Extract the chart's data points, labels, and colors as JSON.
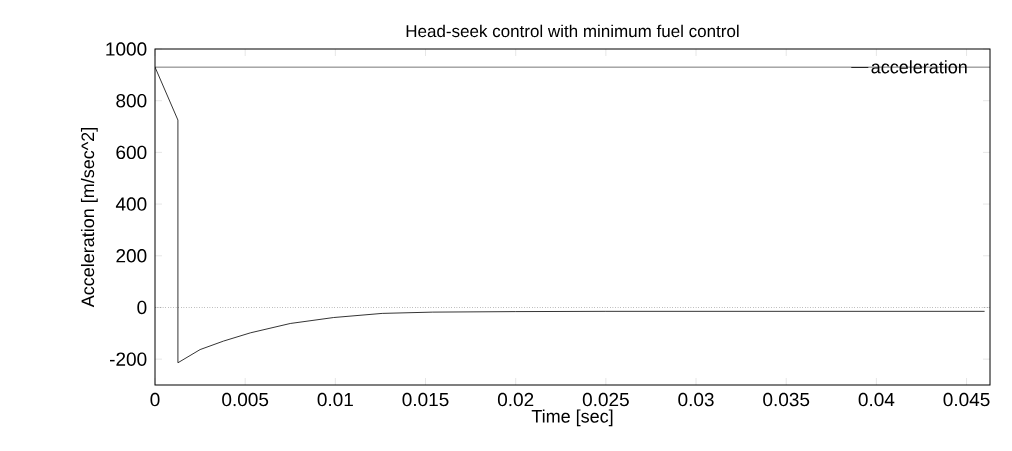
{
  "chart_data": {
    "type": "line",
    "title": "Head-seek control with minimum fuel control",
    "xlabel": "Time [sec]",
    "ylabel": "Acceleration [m/sec^2]",
    "xlim": [
      0,
      0.0463
    ],
    "ylim": [
      -300,
      1000
    ],
    "xticks": [
      0,
      0.005,
      0.01,
      0.015,
      0.02,
      0.025,
      0.03,
      0.035,
      0.04,
      0.045
    ],
    "yticks": [
      -200,
      0,
      200,
      400,
      600,
      800,
      1000
    ],
    "series": [
      {
        "name": "acceleration",
        "color": "#000000",
        "x": [
          0,
          0.00127,
          0.00127,
          0.0025,
          0.0038,
          0.0053,
          0.0075,
          0.0099,
          0.0126,
          0.0154,
          0.02,
          0.025,
          0.03,
          0.035,
          0.04,
          0.046
        ],
        "values": [
          930,
          725,
          -214,
          -163,
          -130,
          -98,
          -62,
          -39,
          -23,
          -18,
          -16,
          -15,
          -15,
          -15,
          -15,
          -15
        ]
      }
    ],
    "ref_lines": [
      {
        "axis": "y",
        "value": 930,
        "line_style": "solid"
      },
      {
        "axis": "y",
        "value": 0,
        "line_style": "dotted"
      }
    ],
    "legend": "top right",
    "grid": false,
    "marker": "none",
    "line_style": "solid"
  }
}
